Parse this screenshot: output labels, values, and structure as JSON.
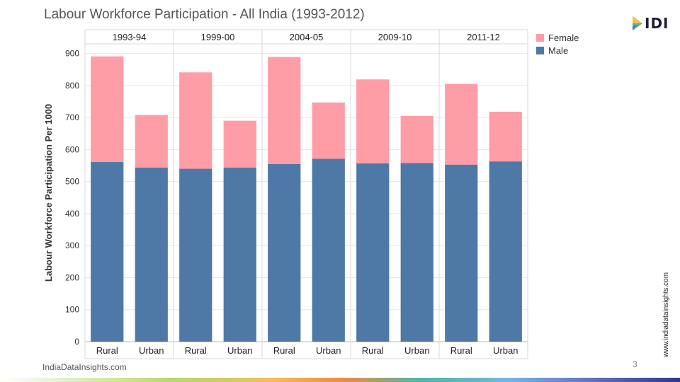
{
  "page": {
    "title": "Labour Workforce Participation - All India (1993-2012)",
    "logo_text": "IDI",
    "side_url": "www.indiadatainsights.com",
    "footer_url": "IndiaDataInsights.com",
    "page_number": "3"
  },
  "colors": {
    "female": "#ff9da7",
    "male": "#4e79a7",
    "grid": "#e6e6e6",
    "divider": "#d9d9d9"
  },
  "chart_data": {
    "type": "bar",
    "stacked": true,
    "title": "Labour Workforce Participation - All India (1993-2012)",
    "ylabel": "Labour Workforce Participation Per 1000",
    "xlabel": "",
    "ylim": [
      0,
      930
    ],
    "yticks": [
      0,
      100,
      200,
      300,
      400,
      500,
      600,
      700,
      800,
      900
    ],
    "grid": true,
    "legend_position": "right-top",
    "panels": [
      "1993-94",
      "1999-00",
      "2004-05",
      "2009-10",
      "2011-12"
    ],
    "categories": [
      "Rural",
      "Urban"
    ],
    "series": [
      {
        "name": "Male",
        "values": [
          [
            561,
            544
          ],
          [
            540,
            544
          ],
          [
            555,
            571
          ],
          [
            557,
            558
          ],
          [
            553,
            563
          ]
        ]
      },
      {
        "name": "Female",
        "values": [
          [
            330,
            164
          ],
          [
            301,
            146
          ],
          [
            334,
            176
          ],
          [
            262,
            147
          ],
          [
            252,
            155
          ]
        ]
      }
    ],
    "legend": [
      "Female",
      "Male"
    ]
  }
}
